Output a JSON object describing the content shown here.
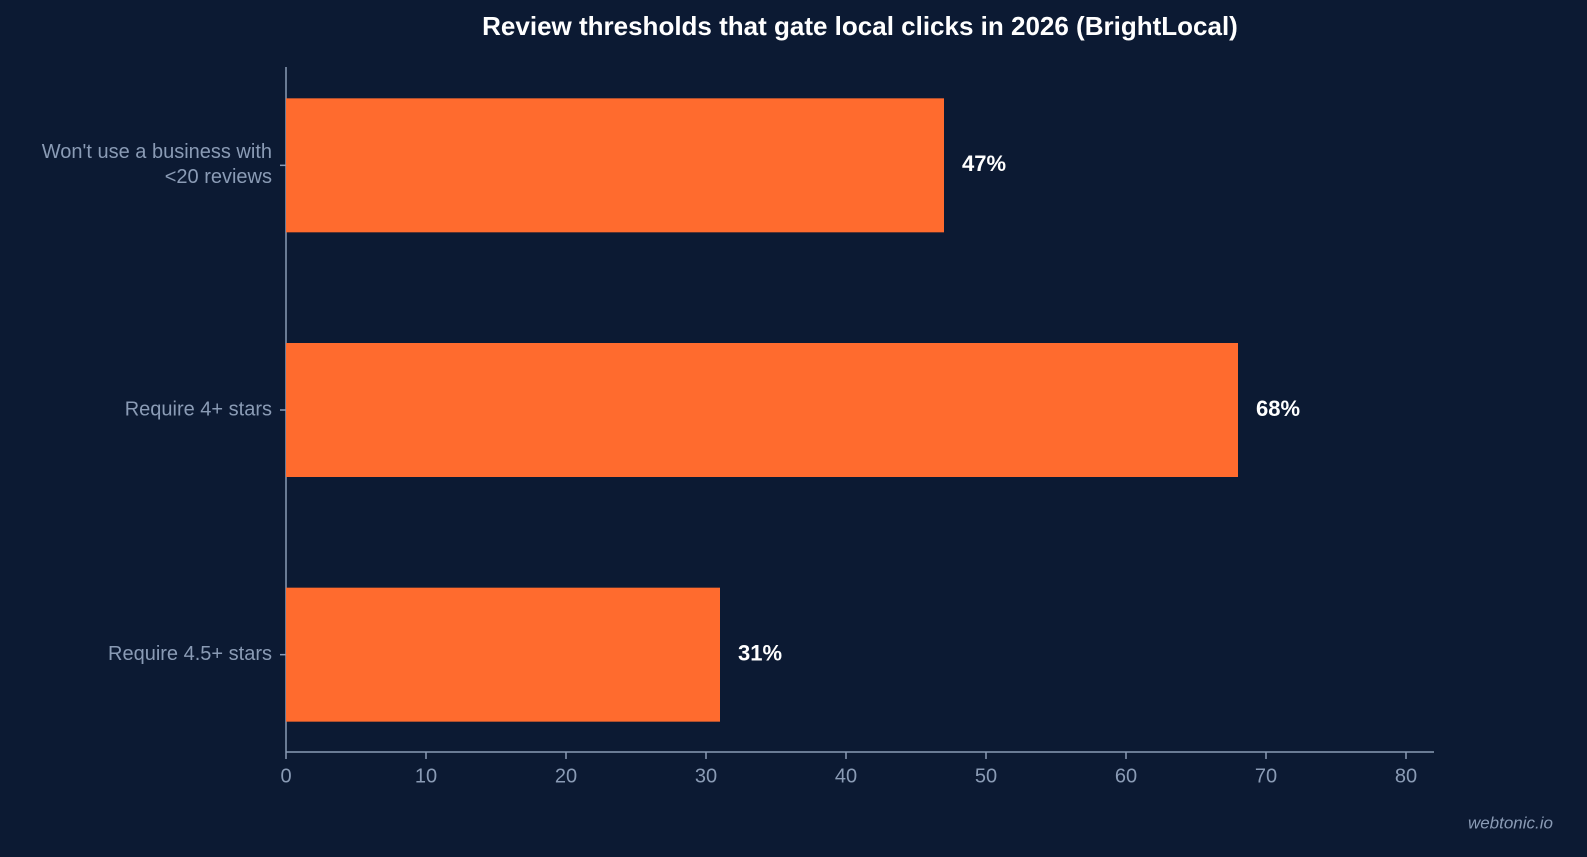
{
  "chart_data": {
    "type": "hbar",
    "title": "Review thresholds that gate local clicks in 2026 (BrightLocal)",
    "categories": [
      "Won't use a business with\n<20 reviews",
      "Require 4+ stars",
      "Require 4.5+ stars"
    ],
    "values": [
      47,
      68,
      31
    ],
    "value_labels": [
      "47%",
      "68%",
      "31%"
    ],
    "color": "#ff6b2e",
    "xlim": [
      0,
      82
    ],
    "xticks": [
      0,
      10,
      20,
      30,
      40,
      50,
      60,
      70,
      80
    ],
    "grid": false
  },
  "watermark": "webtonic.io"
}
